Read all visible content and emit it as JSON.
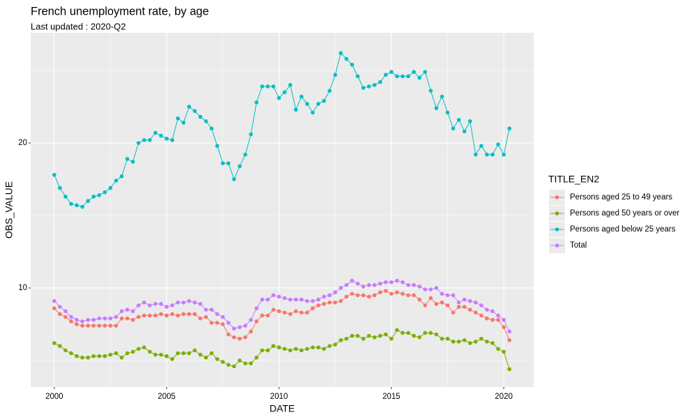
{
  "chart_data": {
    "type": "line",
    "title": "French unemployment rate, by age",
    "subtitle": "Last updated : 2020-Q2",
    "x_label": "DATE",
    "y_label": "OBS_VALUE",
    "legend_title": "TITLE_EN2",
    "legend_position": "right",
    "grid": true,
    "x": [
      2000,
      2000.25,
      2000.5,
      2000.75,
      2001,
      2001.25,
      2001.5,
      2001.75,
      2002,
      2002.25,
      2002.5,
      2002.75,
      2003,
      2003.25,
      2003.5,
      2003.75,
      2004,
      2004.25,
      2004.5,
      2004.75,
      2005,
      2005.25,
      2005.5,
      2005.75,
      2006,
      2006.25,
      2006.5,
      2006.75,
      2007,
      2007.25,
      2007.5,
      2007.75,
      2008,
      2008.25,
      2008.5,
      2008.75,
      2009,
      2009.25,
      2009.5,
      2009.75,
      2010,
      2010.25,
      2010.5,
      2010.75,
      2011,
      2011.25,
      2011.5,
      2011.75,
      2012,
      2012.25,
      2012.5,
      2012.75,
      2013,
      2013.25,
      2013.5,
      2013.75,
      2014,
      2014.25,
      2014.5,
      2014.75,
      2015,
      2015.25,
      2015.5,
      2015.75,
      2016,
      2016.25,
      2016.5,
      2016.75,
      2017,
      2017.25,
      2017.5,
      2017.75,
      2018,
      2018.25,
      2018.5,
      2018.75,
      2019,
      2019.25,
      2019.5,
      2019.75,
      2020,
      2020.25
    ],
    "series": [
      {
        "name": "Persons aged 25 to 49 years",
        "color": "#F8766D",
        "values": [
          8.6,
          8.2,
          8.0,
          7.7,
          7.5,
          7.4,
          7.4,
          7.4,
          7.4,
          7.4,
          7.4,
          7.4,
          7.9,
          7.9,
          7.8,
          8.0,
          8.1,
          8.1,
          8.1,
          8.2,
          8.1,
          8.2,
          8.1,
          8.2,
          8.2,
          8.2,
          7.9,
          8.0,
          7.6,
          7.6,
          7.5,
          6.8,
          6.6,
          6.5,
          6.6,
          7.0,
          7.7,
          8.1,
          8.1,
          8.5,
          8.4,
          8.3,
          8.2,
          8.4,
          8.3,
          8.3,
          8.6,
          8.8,
          8.9,
          9.0,
          9.0,
          9.1,
          9.4,
          9.6,
          9.5,
          9.5,
          9.4,
          9.5,
          9.7,
          9.8,
          9.6,
          9.7,
          9.6,
          9.5,
          9.5,
          9.2,
          8.8,
          9.3,
          8.9,
          9.0,
          8.8,
          8.3,
          8.7,
          8.7,
          8.5,
          8.3,
          8.1,
          7.9,
          7.8,
          7.8,
          7.3,
          6.4
        ]
      },
      {
        "name": "Persons aged 50 years or over",
        "color": "#7CAE00",
        "values": [
          6.2,
          6.0,
          5.7,
          5.5,
          5.3,
          5.2,
          5.2,
          5.3,
          5.3,
          5.3,
          5.4,
          5.5,
          5.2,
          5.5,
          5.6,
          5.8,
          5.9,
          5.6,
          5.4,
          5.4,
          5.3,
          5.1,
          5.5,
          5.5,
          5.5,
          5.7,
          5.4,
          5.2,
          5.5,
          5.1,
          4.9,
          4.7,
          4.6,
          5.0,
          4.8,
          4.8,
          5.2,
          5.7,
          5.7,
          6.0,
          5.9,
          5.8,
          5.7,
          5.8,
          5.7,
          5.8,
          5.9,
          5.9,
          5.8,
          6.0,
          6.1,
          6.4,
          6.5,
          6.7,
          6.7,
          6.5,
          6.7,
          6.6,
          6.7,
          6.8,
          6.5,
          7.1,
          6.9,
          6.9,
          6.7,
          6.6,
          6.9,
          6.9,
          6.8,
          6.5,
          6.5,
          6.3,
          6.3,
          6.4,
          6.2,
          6.3,
          6.5,
          6.3,
          6.2,
          5.8,
          5.6,
          4.4
        ]
      },
      {
        "name": "Persons aged below 25 years",
        "color": "#00BFC4",
        "values": [
          17.8,
          16.9,
          16.3,
          15.8,
          15.7,
          15.6,
          16.0,
          16.3,
          16.4,
          16.6,
          16.9,
          17.4,
          17.7,
          18.9,
          18.7,
          20.0,
          20.2,
          20.2,
          20.7,
          20.5,
          20.3,
          20.2,
          21.7,
          21.4,
          22.5,
          22.2,
          21.8,
          21.5,
          21.0,
          19.8,
          18.6,
          18.6,
          17.5,
          18.4,
          19.2,
          20.6,
          22.8,
          23.9,
          23.9,
          23.9,
          23.1,
          23.5,
          24.0,
          22.3,
          23.2,
          22.7,
          22.1,
          22.7,
          22.9,
          23.6,
          24.7,
          26.2,
          25.8,
          25.4,
          24.6,
          23.8,
          23.9,
          24.0,
          24.2,
          24.7,
          24.9,
          24.6,
          24.6,
          24.6,
          24.9,
          24.5,
          24.9,
          23.6,
          22.4,
          23.2,
          22.1,
          21.0,
          21.6,
          20.8,
          21.5,
          19.2,
          19.8,
          19.2,
          19.2,
          19.9,
          19.2,
          21.0
        ]
      },
      {
        "name": "Total",
        "color": "#C77CFF",
        "values": [
          9.1,
          8.7,
          8.4,
          8.0,
          7.8,
          7.7,
          7.8,
          7.8,
          7.9,
          7.9,
          7.9,
          8.0,
          8.4,
          8.5,
          8.4,
          8.8,
          9.0,
          8.8,
          8.9,
          8.9,
          8.7,
          8.8,
          9.0,
          9.0,
          9.1,
          9.0,
          8.9,
          8.5,
          8.5,
          8.2,
          8.0,
          7.6,
          7.2,
          7.3,
          7.4,
          7.8,
          8.6,
          9.2,
          9.2,
          9.5,
          9.4,
          9.3,
          9.2,
          9.2,
          9.2,
          9.1,
          9.1,
          9.2,
          9.4,
          9.5,
          9.7,
          10.0,
          10.2,
          10.5,
          10.3,
          10.1,
          10.2,
          10.2,
          10.3,
          10.4,
          10.4,
          10.5,
          10.4,
          10.2,
          10.2,
          10.1,
          9.9,
          9.9,
          10.0,
          9.6,
          9.5,
          9.5,
          9.0,
          9.2,
          9.1,
          9.0,
          8.8,
          8.5,
          8.4,
          8.1,
          7.8,
          7.0
        ]
      }
    ],
    "xlim": [
      1998.95,
      2021.33
    ],
    "ylim": [
      3.17,
      27.6
    ],
    "xticks": [
      2000,
      2005,
      2010,
      2015,
      2020
    ],
    "yticks": [
      10,
      20
    ],
    "x_minor_ticks": [
      2002.5,
      2007.5,
      2012.5,
      2017.5
    ],
    "y_minor_ticks": [
      5,
      15,
      25
    ]
  }
}
